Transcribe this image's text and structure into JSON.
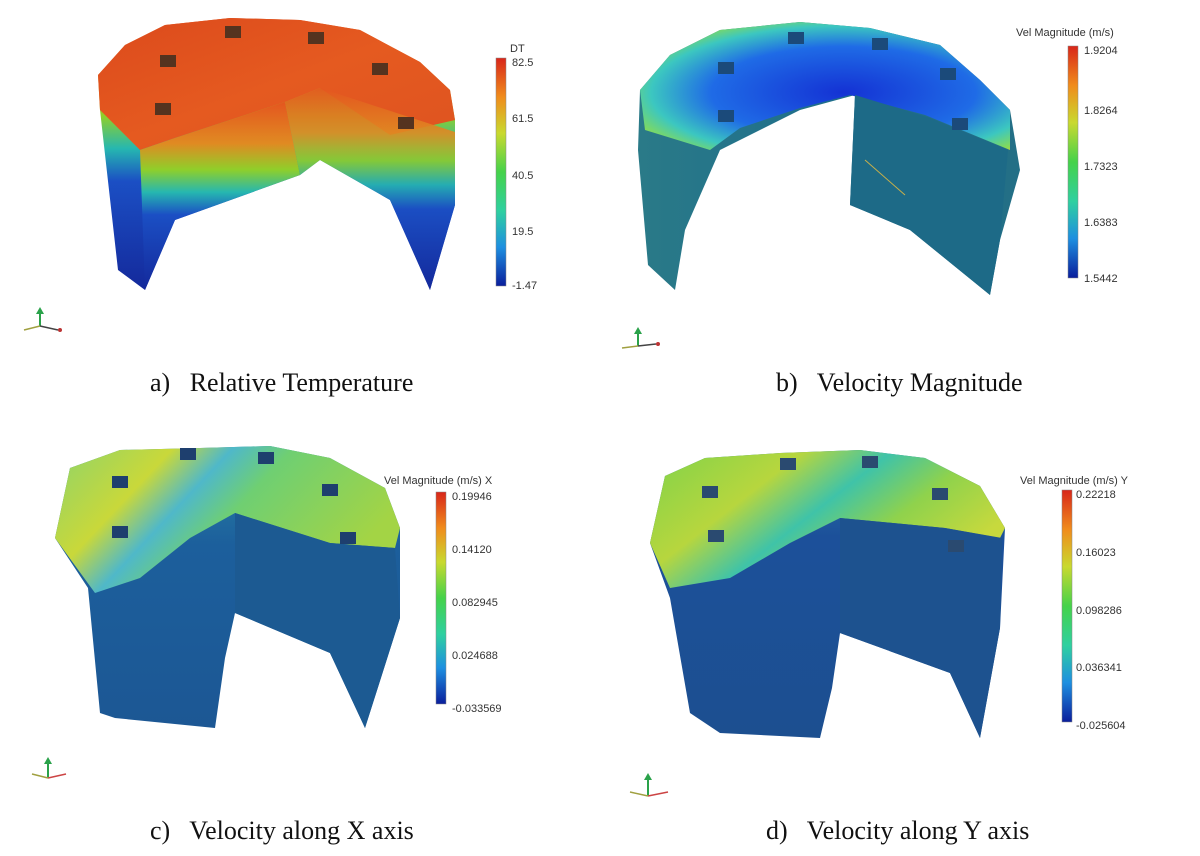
{
  "panels": [
    {
      "id": "a",
      "caption_letter": "a)",
      "caption_text": "Relative Temperature",
      "colorbar": {
        "title": "DT",
        "ticks": [
          "82.5",
          "61.5",
          "40.5",
          "19.5",
          "-1.47"
        ]
      },
      "colors": {
        "top": "#e4561f",
        "band": "#8fcf2a",
        "bottom": "#14299b"
      }
    },
    {
      "id": "b",
      "caption_letter": "b)",
      "caption_text": "Velocity Magnitude",
      "colorbar": {
        "title": "Vel Magnitude (m/s)",
        "ticks": [
          "1.9204",
          "1.8264",
          "1.7323",
          "1.6383",
          "1.5442"
        ]
      },
      "colors": {
        "top": "#1a3fd8",
        "band": "#58d77a",
        "bottom": "#1f6e8b"
      }
    },
    {
      "id": "c",
      "caption_letter": "c)",
      "caption_text": "Velocity along X axis",
      "colorbar": {
        "title": "Vel Magnitude (m/s) X",
        "ticks": [
          "0.19946",
          "0.14120",
          "0.082945",
          "0.024688",
          "-0.033569"
        ]
      },
      "colors": {
        "top": "#5ec8a0",
        "band": "#c9d83a",
        "bottom": "#1c5794"
      }
    },
    {
      "id": "d",
      "caption_letter": "d)",
      "caption_text": "Velocity along Y axis",
      "colorbar": {
        "title": "Vel Magnitude (m/s) Y",
        "ticks": [
          "0.22218",
          "0.16023",
          "0.098286",
          "0.036341",
          "-0.025604"
        ]
      },
      "colors": {
        "top": "#6fd14e",
        "band": "#c7d93d",
        "bottom": "#1c4f90"
      }
    }
  ],
  "colormap": [
    "#0a1e9c",
    "#1e8fe0",
    "#2fd0a0",
    "#45d24a",
    "#c9d92f",
    "#f08c1c",
    "#d8261a"
  ]
}
